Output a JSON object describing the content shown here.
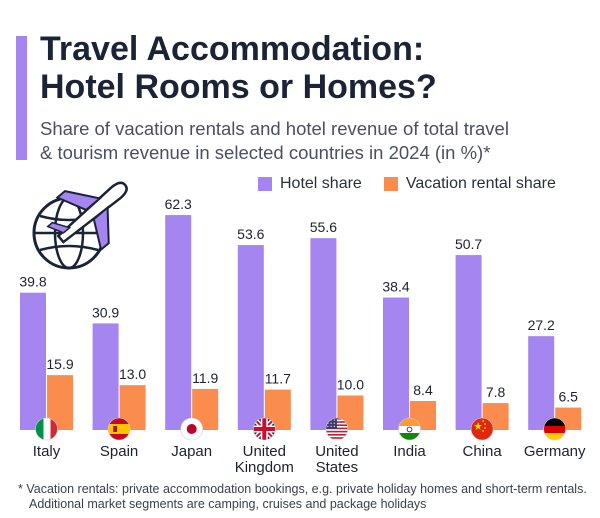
{
  "header": {
    "title_line1": "Travel Accommodation:",
    "title_line2": "Hotel Rooms or Homes?",
    "subtitle_line1": "Share of vacation rentals and hotel revenue of total travel",
    "subtitle_line2": "& tourism revenue in selected countries in 2024 (in %)*"
  },
  "footnote": {
    "line1": "* Vacation rentals: private accommodation bookings, e.g. private holiday homes and short-term rentals.",
    "line2": "Additional market segments are camping, cruises and package holidays"
  },
  "colors": {
    "hotel": "#a586f0",
    "vacation": "#fa8c4e",
    "text": "#1c2230",
    "accent": "#a586f0"
  },
  "icons": [
    "airplane-globe-icon"
  ],
  "chart_data": {
    "type": "bar",
    "categories": [
      "Italy",
      "Spain",
      "Japan",
      "United Kingdom",
      "United States",
      "India",
      "China",
      "Germany"
    ],
    "category_lines": [
      [
        "Italy"
      ],
      [
        "Spain"
      ],
      [
        "Japan"
      ],
      [
        "United",
        "Kingdom"
      ],
      [
        "United",
        "States"
      ],
      [
        "India"
      ],
      [
        "China"
      ],
      [
        "Germany"
      ]
    ],
    "flags": [
      "italy-flag-icon",
      "spain-flag-icon",
      "japan-flag-icon",
      "uk-flag-icon",
      "us-flag-icon",
      "india-flag-icon",
      "china-flag-icon",
      "germany-flag-icon"
    ],
    "series": [
      {
        "name": "Hotel share",
        "values": [
          39.8,
          30.9,
          62.3,
          53.6,
          55.6,
          38.4,
          50.7,
          27.2
        ]
      },
      {
        "name": "Vacation rental share",
        "values": [
          15.9,
          13.0,
          11.9,
          11.7,
          10.0,
          8.4,
          7.8,
          6.5
        ]
      }
    ],
    "value_labels": [
      [
        "39.8",
        "30.9",
        "62.3",
        "53.6",
        "55.6",
        "38.4",
        "50.7",
        "27.2"
      ],
      [
        "15.9",
        "13.0",
        "11.9",
        "11.7",
        "10.0",
        "8.4",
        "7.8",
        "6.5"
      ]
    ],
    "ylim": [
      0,
      70
    ],
    "legend_position": "top-right",
    "grid": false
  }
}
